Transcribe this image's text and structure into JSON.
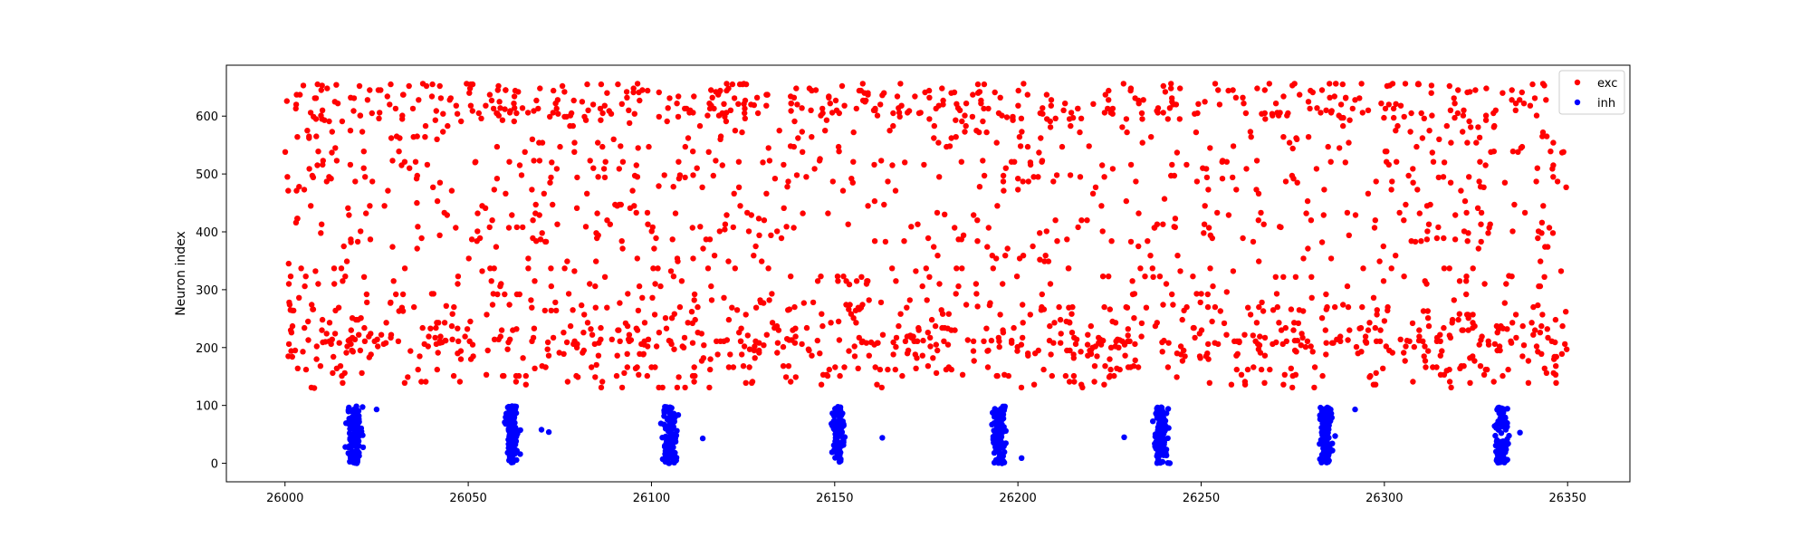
{
  "chart_data": {
    "type": "scatter",
    "title": "",
    "xlabel": "",
    "ylabel": "Neuron index",
    "xlim": [
      25984,
      26367
    ],
    "ylim": [
      -32,
      688
    ],
    "xticks": [
      26000,
      26050,
      26100,
      26150,
      26200,
      26250,
      26300,
      26350
    ],
    "yticks": [
      0,
      100,
      200,
      300,
      400,
      500,
      600
    ],
    "grid": false,
    "legend_position": "top-right",
    "series": [
      {
        "name": "exc",
        "color": "#ff0000",
        "neuron_range": [
          128,
          656
        ],
        "time_range": [
          26000,
          26350
        ],
        "approx_points": 2000,
        "sample_points": [
          [
            26000.5,
            626
          ],
          [
            26001,
            345
          ],
          [
            26001.5,
            265
          ],
          [
            26002,
            184
          ],
          [
            26003,
            416
          ],
          [
            26005,
            653
          ],
          [
            26008,
            130
          ],
          [
            26011,
            210
          ],
          [
            26014,
            654
          ],
          [
            26018,
            382
          ],
          [
            26023,
            183
          ],
          [
            26029,
            562
          ],
          [
            26036,
            450
          ],
          [
            26044,
            272
          ],
          [
            26052,
            521
          ],
          [
            26060,
            612
          ],
          [
            26068,
            233
          ],
          [
            26077,
            349
          ],
          [
            26085,
            170
          ],
          [
            26094,
            588
          ],
          [
            26102,
            479
          ],
          [
            26111,
            262
          ],
          [
            26120,
            404
          ],
          [
            26128,
            619
          ],
          [
            26137,
            215
          ],
          [
            26146,
            526
          ],
          [
            26154,
            309
          ],
          [
            26163,
            636
          ],
          [
            26172,
            188
          ],
          [
            26180,
            430
          ],
          [
            26189,
            271
          ],
          [
            26197,
            598
          ],
          [
            26206,
            352
          ],
          [
            26214,
            244
          ],
          [
            26223,
            515
          ],
          [
            26232,
            178
          ],
          [
            26240,
            457
          ],
          [
            26249,
            605
          ],
          [
            26257,
            296
          ],
          [
            26266,
            219
          ],
          [
            26275,
            544
          ],
          [
            26283,
            382
          ],
          [
            26292,
            628
          ],
          [
            26300,
            246
          ],
          [
            26309,
            473
          ],
          [
            26317,
            160
          ],
          [
            26326,
            563
          ],
          [
            26334,
            324
          ],
          [
            26343,
            416
          ],
          [
            26349.5,
            262
          ]
        ]
      },
      {
        "name": "inh",
        "color": "#0000ff",
        "neuron_range": [
          0,
          99
        ],
        "burst_centers": [
          26019,
          26062,
          26105,
          26151,
          26195,
          26239,
          26284,
          26332
        ],
        "burst_half_width": 2.8,
        "outlier_points": [
          [
            26025,
            93
          ],
          [
            26070,
            58
          ],
          [
            26072,
            54
          ],
          [
            26114,
            43
          ],
          [
            26163,
            44
          ],
          [
            26201,
            9
          ],
          [
            26229,
            45
          ],
          [
            26285,
            93
          ],
          [
            26292,
            93
          ],
          [
            26337,
            53
          ]
        ]
      }
    ]
  }
}
